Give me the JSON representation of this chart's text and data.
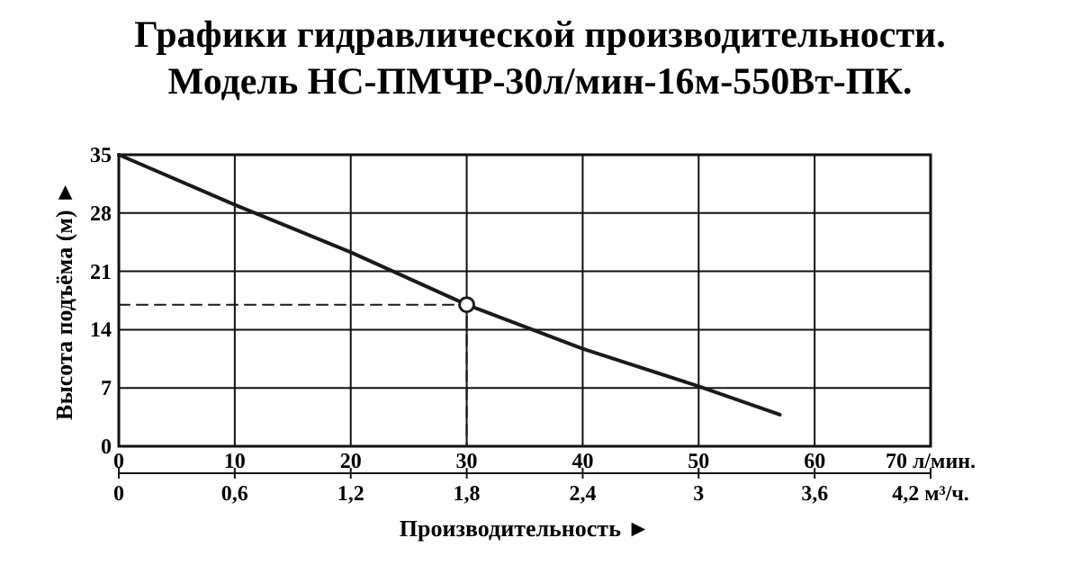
{
  "chart_data": {
    "type": "line",
    "title": "Графики гидравлической производительности.",
    "subtitle": "Модель НС-ПМЧР-30л/мин-16м-550Вт-ПК.",
    "xlabel": "Производительность ►",
    "ylabel": "Высота подъёма (м) ►",
    "xlim": [
      0,
      70
    ],
    "xticks": [
      0,
      10,
      20,
      30,
      40,
      50,
      60,
      {
        "value": 70,
        "label": "70 л/мин."
      }
    ],
    "x2lim": [
      0,
      4.2
    ],
    "x2ticks": [
      0,
      {
        "value": 0.6,
        "label": "0,6"
      },
      {
        "value": 1.2,
        "label": "1,2"
      },
      {
        "value": 1.8,
        "label": "1,8"
      },
      {
        "value": 2.4,
        "label": "2,4"
      },
      3,
      {
        "value": 3.6,
        "label": "3,6"
      },
      {
        "value": 4.2,
        "label": "4,2 м³/ч."
      }
    ],
    "ylim": [
      0,
      35
    ],
    "yticks": [
      0,
      7,
      14,
      21,
      28,
      35
    ],
    "grid": true,
    "series": [
      {
        "color": "#1a1a1a",
        "x": [
          0,
          10,
          20,
          30,
          40,
          50,
          57
        ],
        "values": [
          35,
          29,
          23.3,
          17,
          11.7,
          7.2,
          3.8
        ],
        "line_style": "solid"
      },
      {
        "color": "#1a1a1a",
        "x": [
          0,
          30,
          30
        ],
        "values": [
          17,
          17,
          0
        ],
        "line_style": "dashed"
      },
      {
        "type": "scatter",
        "color": "#1a1a1a",
        "x": [
          30
        ],
        "values": [
          17
        ],
        "marker": "circle"
      }
    ]
  }
}
